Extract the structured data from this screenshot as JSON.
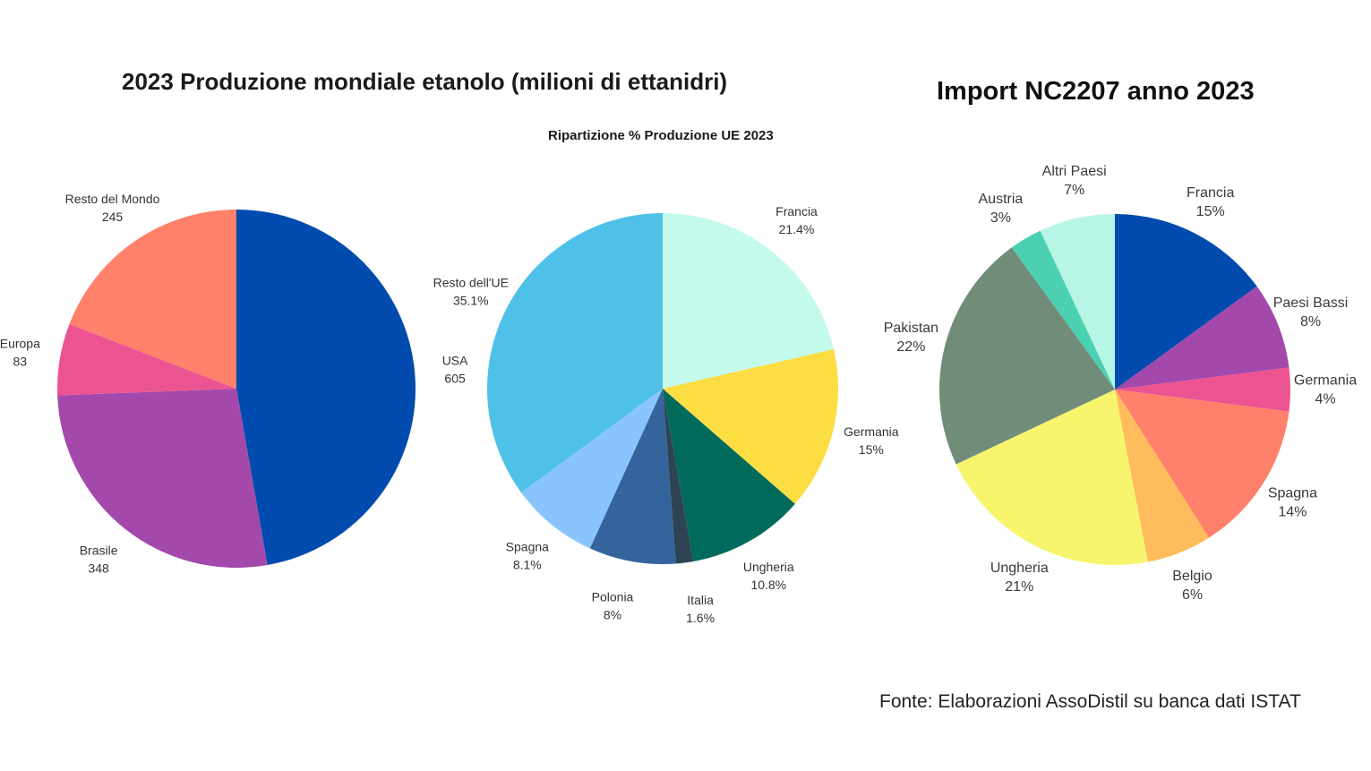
{
  "main_title": "2023 Produzione mondiale etanolo (milioni di ettanidri)",
  "eu_title": "Ripartizione % Produzione UE 2023",
  "import_title": "Import NC2207 anno 2023",
  "source_note": "Fonte: Elaborazioni AssoDistil su banca dati ISTAT",
  "chart_data": [
    {
      "id": "world",
      "type": "pie",
      "title": "2023 Produzione mondiale etanolo (milioni di ettanidri)",
      "slices": [
        {
          "name": "USA",
          "label": "605",
          "value": 605,
          "color": "#004BAD"
        },
        {
          "name": "Brasile",
          "label": "348",
          "value": 348,
          "color": "#A349AB"
        },
        {
          "name": "Europa",
          "label": "83",
          "value": 83,
          "color": "#EC5491"
        },
        {
          "name": "Resto del Mondo",
          "label": "245",
          "value": 245,
          "color": "#FF806B"
        }
      ]
    },
    {
      "id": "eu",
      "type": "pie",
      "title": "Ripartizione % Produzione UE 2023",
      "slices": [
        {
          "name": "Francia",
          "label": "21.4%",
          "value": 21.4,
          "color": "#C4FAEC"
        },
        {
          "name": "Germania",
          "label": "15%",
          "value": 15,
          "color": "#FCDD42"
        },
        {
          "name": "Ungheria",
          "label": "10.8%",
          "value": 10.8,
          "color": "#006B5B"
        },
        {
          "name": "Italia",
          "label": "1.6%",
          "value": 1.6,
          "color": "#2E4454"
        },
        {
          "name": "Polonia",
          "label": "8%",
          "value": 8,
          "color": "#33649C"
        },
        {
          "name": "Spagna",
          "label": "8.1%",
          "value": 8.1,
          "color": "#8AC4FF"
        },
        {
          "name": "Resto dell'UE",
          "label": "35.1%",
          "value": 35.1,
          "color": "#4FC1E9"
        }
      ]
    },
    {
      "id": "import",
      "type": "pie",
      "title": "Import NC2207 anno 2023",
      "slices": [
        {
          "name": "Francia",
          "label": "15%",
          "value": 15,
          "color": "#004BAD"
        },
        {
          "name": "Paesi Bassi",
          "label": "8%",
          "value": 8,
          "color": "#A349AB"
        },
        {
          "name": "Germania",
          "label": "4%",
          "value": 4,
          "color": "#EC5491"
        },
        {
          "name": "Spagna",
          "label": "14%",
          "value": 14,
          "color": "#FF806B"
        },
        {
          "name": "Belgio",
          "label": "6%",
          "value": 6,
          "color": "#FFBC5C"
        },
        {
          "name": "Ungheria",
          "label": "21%",
          "value": 21,
          "color": "#F7F56E"
        },
        {
          "name": "Pakistan",
          "label": "22%",
          "value": 22,
          "color": "#728C7A"
        },
        {
          "name": "Austria",
          "label": "3%",
          "value": 3,
          "color": "#4BD1B1"
        },
        {
          "name": "Altri Paesi",
          "label": "7%",
          "value": 7,
          "color": "#B7F5E6"
        }
      ]
    }
  ]
}
